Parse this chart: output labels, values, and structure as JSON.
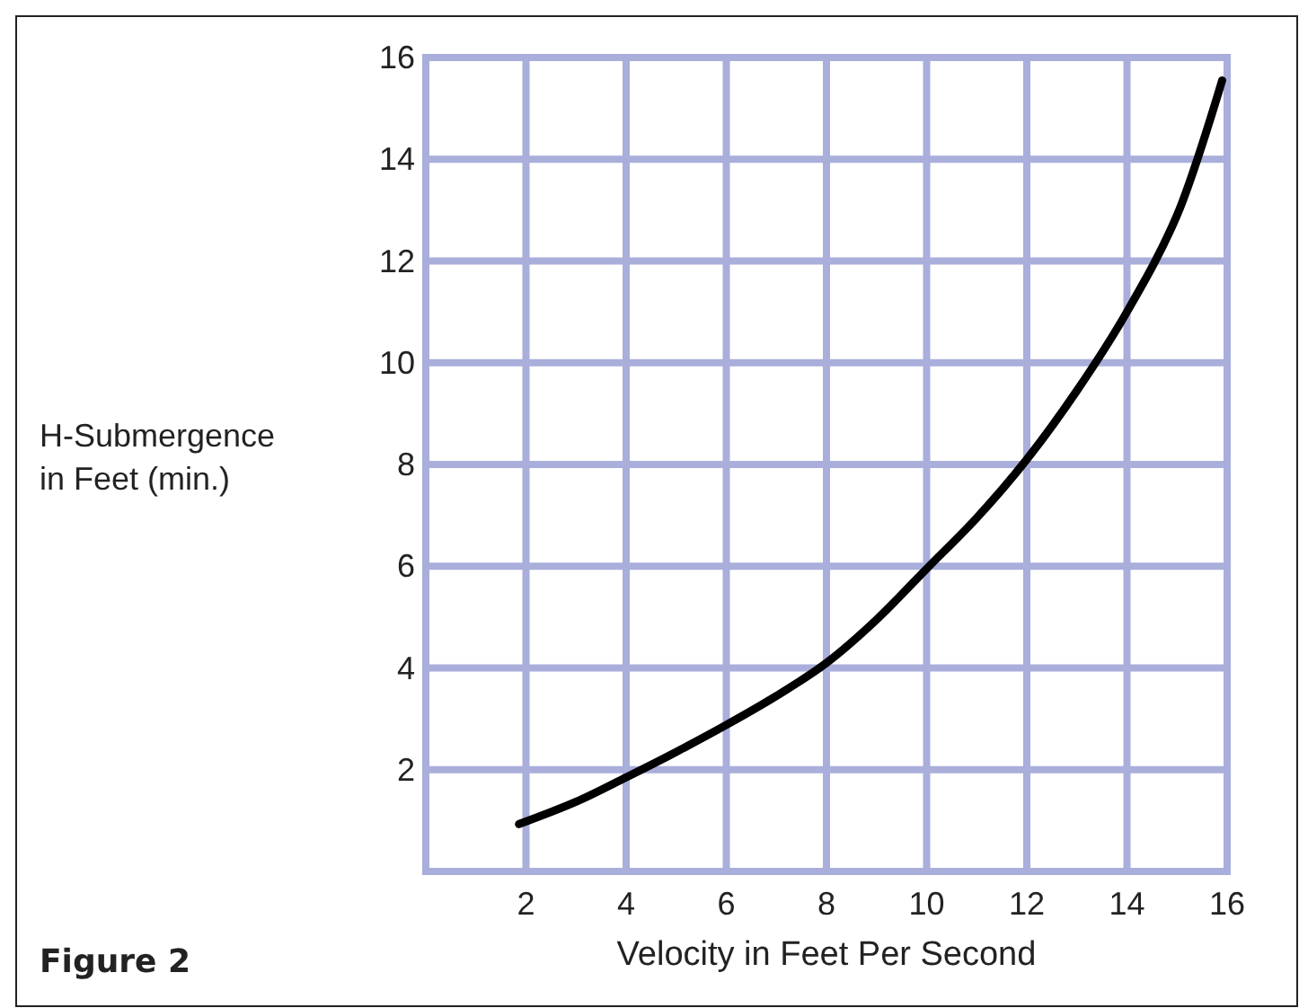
{
  "chart_data": {
    "type": "line",
    "xlabel": "Velocity in Feet Per Second",
    "ylabel": "H-Submergence\nin Feet (min.)",
    "annotations": [
      "Figure 2"
    ],
    "x": [
      1.86,
      3,
      4,
      5,
      6,
      7,
      8,
      9,
      10,
      11,
      12,
      13,
      14,
      15,
      15.9
    ],
    "series": [
      {
        "color": "#000000",
        "values": [
          0.93,
          1.37,
          1.85,
          2.35,
          2.88,
          3.45,
          4.1,
          4.95,
          5.95,
          6.95,
          8.1,
          9.45,
          11.0,
          12.9,
          15.55
        ]
      }
    ],
    "xlim": [
      0,
      16
    ],
    "ylim": [
      0,
      16
    ],
    "xticks": [
      2,
      4,
      6,
      8,
      10,
      12,
      14,
      16
    ],
    "yticks": [
      2,
      4,
      6,
      8,
      10,
      12,
      14,
      16
    ],
    "grid": true,
    "marker": "none",
    "line_style": "solid"
  }
}
